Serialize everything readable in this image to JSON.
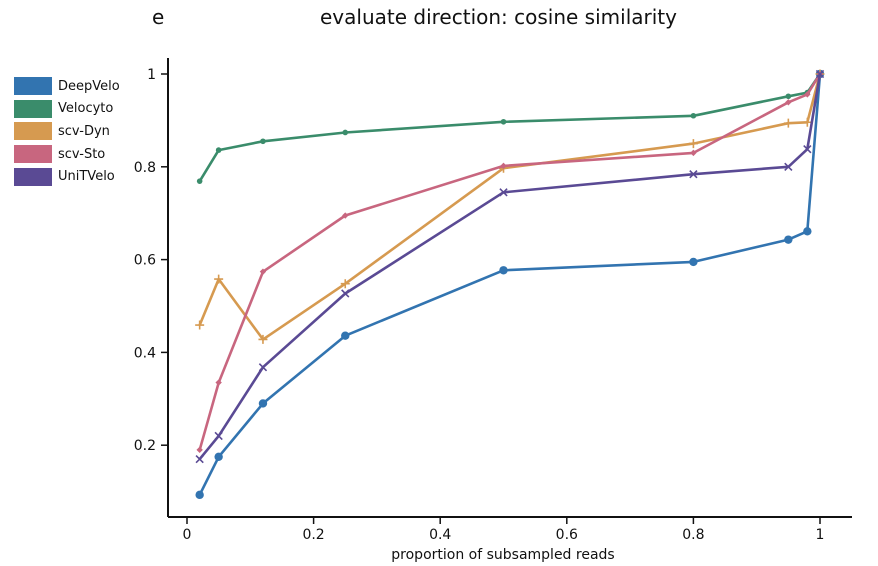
{
  "panel_letter": "e",
  "chart_data": {
    "type": "line",
    "title": "evaluate direction: cosine similarity",
    "xlabel": "proportion of subsampled reads",
    "ylabel": "",
    "xlim": [
      0,
      1
    ],
    "ylim": [
      0,
      1
    ],
    "xticks": [
      0,
      0.2,
      0.4,
      0.6,
      0.8,
      1
    ],
    "xtick_labels": [
      "0",
      "0.2",
      "0.4",
      "0.6",
      "0.8",
      "1"
    ],
    "yticks": [
      0.2,
      0.4,
      0.6,
      0.8,
      1
    ],
    "ytick_labels": [
      "0.2",
      "0.4",
      "0.6",
      "0.8",
      "1"
    ],
    "grid": false,
    "legend_position": "left",
    "x": [
      0.02,
      0.05,
      0.12,
      0.25,
      0.5,
      0.8,
      0.95,
      0.98,
      1.0
    ],
    "series": [
      {
        "name": "DeepVelo",
        "color": "#3274b0",
        "marker": "circle",
        "values": [
          0.093,
          0.175,
          0.29,
          0.436,
          0.577,
          0.595,
          0.643,
          0.661,
          1.0
        ]
      },
      {
        "name": "Velocyto",
        "color": "#3a8c6b",
        "marker": "small-circle",
        "values": [
          0.769,
          0.836,
          0.855,
          0.874,
          0.897,
          0.91,
          0.952,
          0.96,
          1.0
        ]
      },
      {
        "name": "scv-Dyn",
        "color": "#d69a50",
        "marker": "plus",
        "values": [
          0.459,
          0.558,
          0.428,
          0.548,
          0.797,
          0.85,
          0.894,
          0.896,
          1.0
        ]
      },
      {
        "name": "scv-Sto",
        "color": "#c8667f",
        "marker": "small-diamond",
        "values": [
          0.19,
          0.335,
          0.574,
          0.695,
          0.802,
          0.83,
          0.939,
          0.956,
          1.0
        ]
      },
      {
        "name": "UniTVelo",
        "color": "#5a4a94",
        "marker": "x",
        "values": [
          0.17,
          0.22,
          0.368,
          0.527,
          0.745,
          0.784,
          0.8,
          0.838,
          1.0
        ]
      }
    ]
  }
}
